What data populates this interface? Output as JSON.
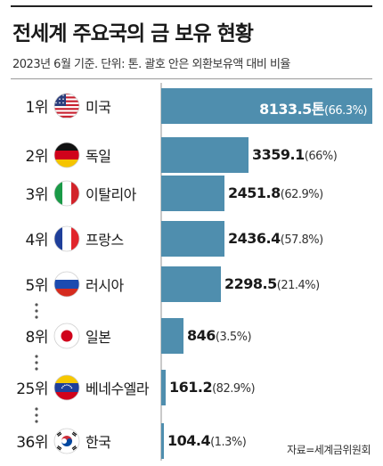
{
  "header": {
    "title": "전세계 주요국의 금 보유 현황",
    "subtitle": "2023년 6월 기준. 단위: 톤. 괄호 안은 외환보유액 대비 비율"
  },
  "source": "자료=세계금위원회",
  "chart_data": {
    "type": "bar",
    "orientation": "horizontal",
    "unit": "톤",
    "bar_color": "#4f8eae",
    "xlim": [
      0,
      8133.5
    ],
    "rows": [
      {
        "rank": "1위",
        "country": "미국",
        "flag": "us-flag",
        "value": 8133.5,
        "value_text": "8133.5",
        "unit_text": "톤",
        "pct": "(66.3%)"
      },
      {
        "rank": "2위",
        "country": "독일",
        "flag": "germany-flag",
        "value": 3359.1,
        "value_text": "3359.1",
        "unit_text": "",
        "pct": "(66%)"
      },
      {
        "rank": "3위",
        "country": "이탈리아",
        "flag": "italy-flag",
        "value": 2451.8,
        "value_text": "2451.8",
        "unit_text": "",
        "pct": "(62.9%)"
      },
      {
        "rank": "4위",
        "country": "프랑스",
        "flag": "france-flag",
        "value": 2436.4,
        "value_text": "2436.4",
        "unit_text": "",
        "pct": "(57.8%)"
      },
      {
        "rank": "5위",
        "country": "러시아",
        "flag": "russia-flag",
        "value": 2298.5,
        "value_text": "2298.5",
        "unit_text": "",
        "pct": "(21.4%)"
      },
      {
        "rank": "8위",
        "country": "일본",
        "flag": "japan-flag",
        "value": 846,
        "value_text": "846",
        "unit_text": "",
        "pct": "(3.5%)"
      },
      {
        "rank": "25위",
        "country": "베네수엘라",
        "flag": "venezuela-flag",
        "value": 161.2,
        "value_text": "161.2",
        "unit_text": "",
        "pct": "(82.9%)"
      },
      {
        "rank": "36위",
        "country": "한국",
        "flag": "korea-flag",
        "value": 104.4,
        "value_text": "104.4",
        "unit_text": "",
        "pct": "(1.3%)"
      }
    ]
  }
}
